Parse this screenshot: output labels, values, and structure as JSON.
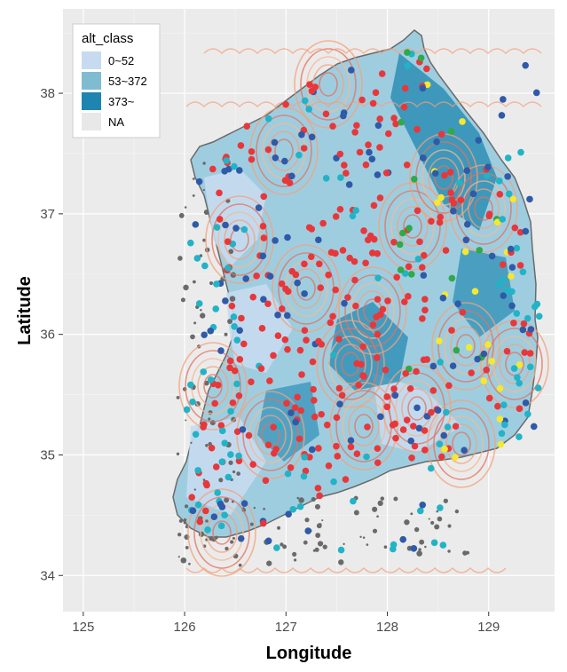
{
  "map": {
    "legend": {
      "title": "alt_class",
      "entries": [
        {
          "label": "0~52",
          "color": "#c6dbef"
        },
        {
          "label": "53~372",
          "color": "#7fbcd2"
        },
        {
          "label": "373~",
          "color": "#1d85b0"
        },
        {
          "label": "NA",
          "color": "#e8e8e8"
        }
      ]
    },
    "x_axis": {
      "title": "Longitude",
      "ticks": [
        "125",
        "126",
        "127",
        "128",
        "129"
      ],
      "range": [
        124.8,
        129.65
      ]
    },
    "y_axis": {
      "title": "Latitude",
      "ticks": [
        "34",
        "35",
        "36",
        "37",
        "38"
      ],
      "range": [
        33.7,
        38.7
      ]
    },
    "panel_background": "#ebebeb",
    "point_colors": {
      "red": "#e8373a",
      "blue": "#2f5aa8",
      "cyan": "#22b3c6",
      "yellow": "#f5e830",
      "green": "#2daa4a"
    },
    "contour_colors": [
      "#e6705a",
      "#f4a07a",
      "#f6b892"
    ]
  }
}
